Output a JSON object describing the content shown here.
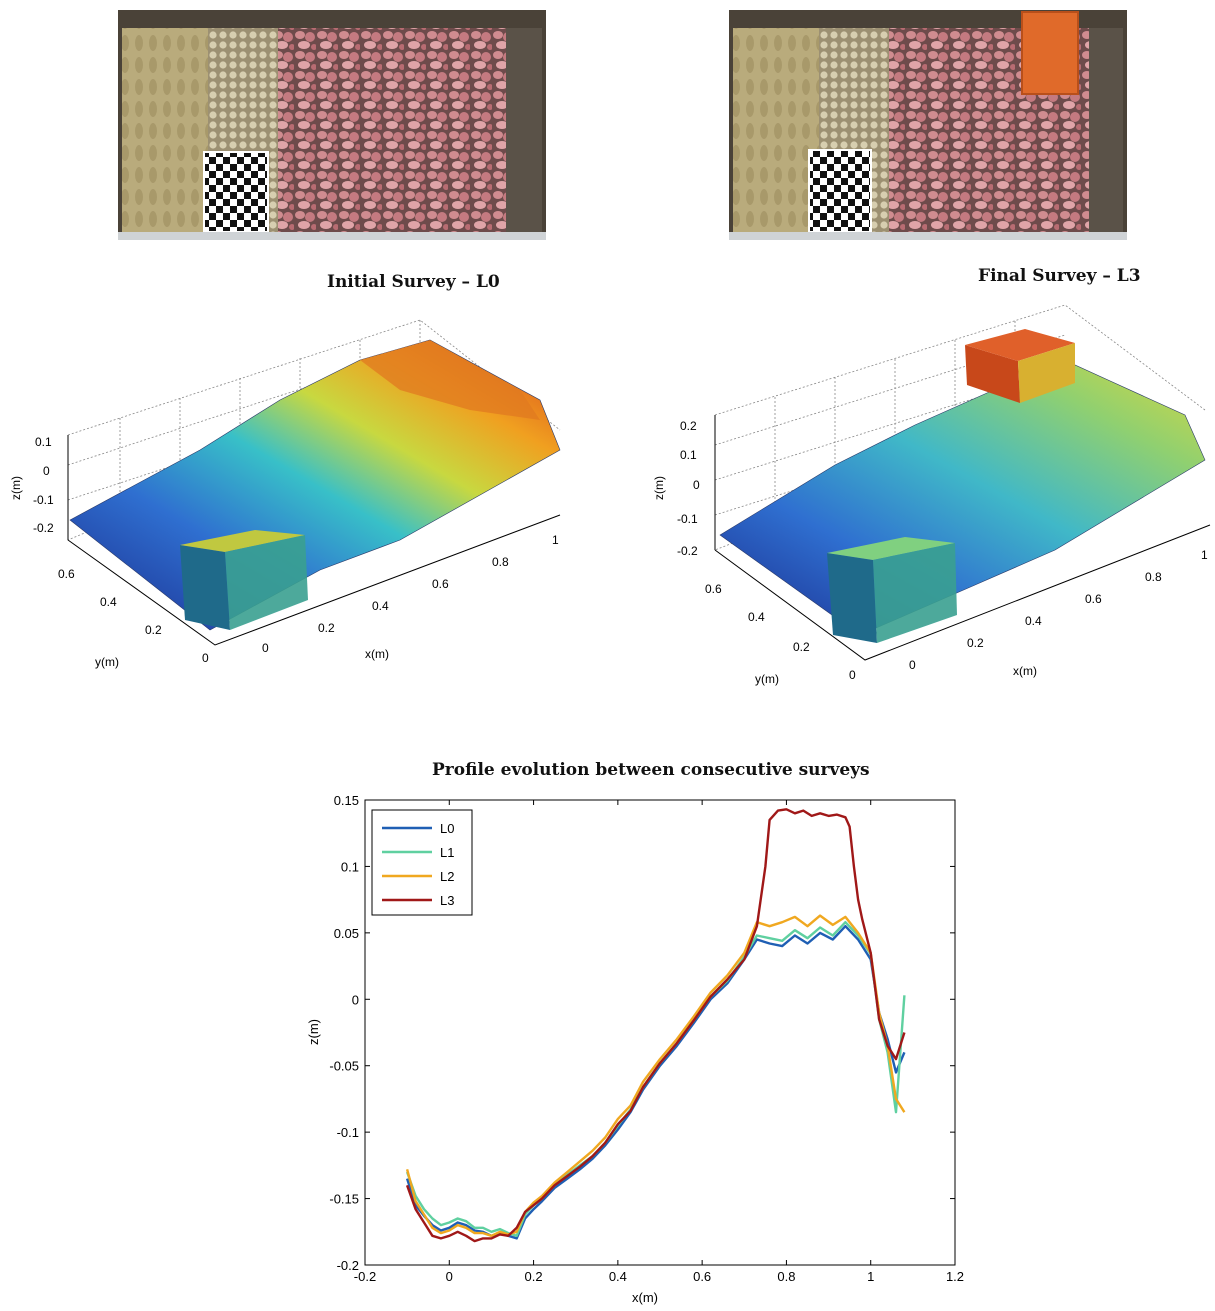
{
  "panels": {
    "initial_title": "Initial Survey – L0",
    "final_title": "Final Survey – L3",
    "profile_title": "Profile evolution between consecutive surveys"
  },
  "surface_initial": {
    "zlabel": "z(m)",
    "ylabel": "y(m)",
    "xlabel": "x(m)",
    "zticks": [
      "0.1",
      "0",
      "-0.1",
      "-0.2"
    ],
    "yticks": [
      "0.6",
      "0.4",
      "0.2",
      "0"
    ],
    "xticks": [
      "0",
      "0.2",
      "0.4",
      "0.6",
      "0.8",
      "1"
    ]
  },
  "surface_final": {
    "zlabel": "z(m)",
    "ylabel": "y(m)",
    "xlabel": "x(m)",
    "zticks": [
      "0.2",
      "0.1",
      "0",
      "-0.1",
      "-0.2"
    ],
    "yticks": [
      "0.6",
      "0.4",
      "0.2",
      "0"
    ],
    "xticks": [
      "0",
      "0.2",
      "0.4",
      "0.6",
      "0.8",
      "1"
    ]
  },
  "colors": {
    "L0": "#1f5fb4",
    "L1": "#5fd0a0",
    "L2": "#f0a820",
    "L3": "#a01818",
    "sand": "#b5a777",
    "rock": "#c9868c",
    "block": "#e06a2a"
  },
  "chart_data": {
    "type": "line",
    "title": "Profile evolution between consecutive surveys",
    "xlabel": "x(m)",
    "ylabel": "z(m)",
    "xlim": [
      -0.2,
      1.2
    ],
    "ylim": [
      -0.2,
      0.15
    ],
    "xticks": [
      "-0.2",
      "0",
      "0.2",
      "0.4",
      "0.6",
      "0.8",
      "1",
      "1.2"
    ],
    "yticks": [
      "0.15",
      "0.1",
      "0.05",
      "0",
      "-0.05",
      "-0.1",
      "-0.15",
      "-0.2"
    ],
    "legend": "top-left",
    "series": [
      {
        "name": "L0",
        "x": [
          -0.1,
          -0.08,
          -0.06,
          -0.04,
          -0.02,
          0,
          0.02,
          0.04,
          0.06,
          0.08,
          0.1,
          0.12,
          0.14,
          0.16,
          0.18,
          0.2,
          0.22,
          0.25,
          0.28,
          0.31,
          0.34,
          0.37,
          0.4,
          0.43,
          0.46,
          0.5,
          0.54,
          0.58,
          0.62,
          0.66,
          0.7,
          0.73,
          0.76,
          0.79,
          0.82,
          0.85,
          0.88,
          0.91,
          0.94,
          0.97,
          1.0,
          1.02,
          1.04,
          1.06,
          1.08
        ],
        "y": [
          -0.135,
          -0.155,
          -0.163,
          -0.17,
          -0.174,
          -0.172,
          -0.168,
          -0.17,
          -0.174,
          -0.175,
          -0.178,
          -0.176,
          -0.178,
          -0.18,
          -0.165,
          -0.158,
          -0.152,
          -0.142,
          -0.135,
          -0.128,
          -0.12,
          -0.11,
          -0.098,
          -0.085,
          -0.068,
          -0.05,
          -0.035,
          -0.018,
          0.0,
          0.012,
          0.03,
          0.045,
          0.042,
          0.04,
          0.048,
          0.042,
          0.05,
          0.045,
          0.055,
          0.045,
          0.03,
          -0.01,
          -0.03,
          -0.055,
          -0.04
        ]
      },
      {
        "name": "L1",
        "x": [
          -0.1,
          -0.08,
          -0.06,
          -0.04,
          -0.02,
          0,
          0.02,
          0.04,
          0.06,
          0.08,
          0.1,
          0.12,
          0.14,
          0.16,
          0.18,
          0.2,
          0.22,
          0.25,
          0.28,
          0.31,
          0.34,
          0.37,
          0.4,
          0.43,
          0.46,
          0.5,
          0.54,
          0.58,
          0.62,
          0.66,
          0.7,
          0.73,
          0.76,
          0.79,
          0.82,
          0.85,
          0.88,
          0.91,
          0.94,
          0.97,
          1.0,
          1.02,
          1.04,
          1.06,
          1.08
        ],
        "y": [
          -0.13,
          -0.148,
          -0.158,
          -0.165,
          -0.17,
          -0.168,
          -0.165,
          -0.167,
          -0.172,
          -0.172,
          -0.175,
          -0.173,
          -0.176,
          -0.178,
          -0.162,
          -0.155,
          -0.15,
          -0.14,
          -0.132,
          -0.125,
          -0.118,
          -0.108,
          -0.095,
          -0.083,
          -0.066,
          -0.048,
          -0.033,
          -0.016,
          0.002,
          0.014,
          0.032,
          0.048,
          0.046,
          0.044,
          0.052,
          0.046,
          0.054,
          0.048,
          0.058,
          0.048,
          0.034,
          -0.015,
          -0.04,
          -0.085,
          0.003
        ]
      },
      {
        "name": "L2",
        "x": [
          -0.1,
          -0.08,
          -0.06,
          -0.04,
          -0.02,
          0,
          0.02,
          0.04,
          0.06,
          0.08,
          0.1,
          0.12,
          0.14,
          0.16,
          0.18,
          0.2,
          0.22,
          0.25,
          0.28,
          0.31,
          0.34,
          0.37,
          0.4,
          0.43,
          0.46,
          0.5,
          0.54,
          0.58,
          0.62,
          0.66,
          0.7,
          0.73,
          0.76,
          0.79,
          0.82,
          0.85,
          0.88,
          0.91,
          0.94,
          0.97,
          1.0,
          1.02,
          1.04,
          1.06,
          1.08
        ],
        "y": [
          -0.128,
          -0.152,
          -0.162,
          -0.172,
          -0.176,
          -0.174,
          -0.17,
          -0.172,
          -0.176,
          -0.176,
          -0.178,
          -0.175,
          -0.177,
          -0.175,
          -0.16,
          -0.153,
          -0.148,
          -0.138,
          -0.13,
          -0.122,
          -0.114,
          -0.104,
          -0.09,
          -0.08,
          -0.062,
          -0.045,
          -0.03,
          -0.013,
          0.005,
          0.018,
          0.035,
          0.058,
          0.055,
          0.058,
          0.062,
          0.055,
          0.063,
          0.056,
          0.062,
          0.05,
          0.035,
          -0.01,
          -0.035,
          -0.075,
          -0.085
        ]
      },
      {
        "name": "L3",
        "x": [
          -0.1,
          -0.08,
          -0.06,
          -0.04,
          -0.02,
          0,
          0.02,
          0.04,
          0.06,
          0.08,
          0.1,
          0.12,
          0.14,
          0.16,
          0.18,
          0.2,
          0.22,
          0.25,
          0.28,
          0.31,
          0.34,
          0.37,
          0.4,
          0.43,
          0.46,
          0.5,
          0.54,
          0.58,
          0.62,
          0.66,
          0.7,
          0.73,
          0.75,
          0.76,
          0.78,
          0.8,
          0.82,
          0.84,
          0.86,
          0.88,
          0.9,
          0.92,
          0.94,
          0.95,
          0.96,
          0.97,
          0.98,
          1.0,
          1.02,
          1.04,
          1.06,
          1.08
        ],
        "y": [
          -0.14,
          -0.158,
          -0.168,
          -0.178,
          -0.18,
          -0.178,
          -0.175,
          -0.178,
          -0.182,
          -0.18,
          -0.18,
          -0.177,
          -0.178,
          -0.172,
          -0.16,
          -0.155,
          -0.15,
          -0.14,
          -0.133,
          -0.126,
          -0.118,
          -0.108,
          -0.094,
          -0.084,
          -0.066,
          -0.048,
          -0.033,
          -0.016,
          0.002,
          0.015,
          0.03,
          0.055,
          0.1,
          0.135,
          0.142,
          0.143,
          0.14,
          0.142,
          0.138,
          0.14,
          0.138,
          0.139,
          0.137,
          0.13,
          0.1,
          0.075,
          0.06,
          0.035,
          -0.015,
          -0.035,
          -0.045,
          -0.025
        ]
      }
    ]
  }
}
